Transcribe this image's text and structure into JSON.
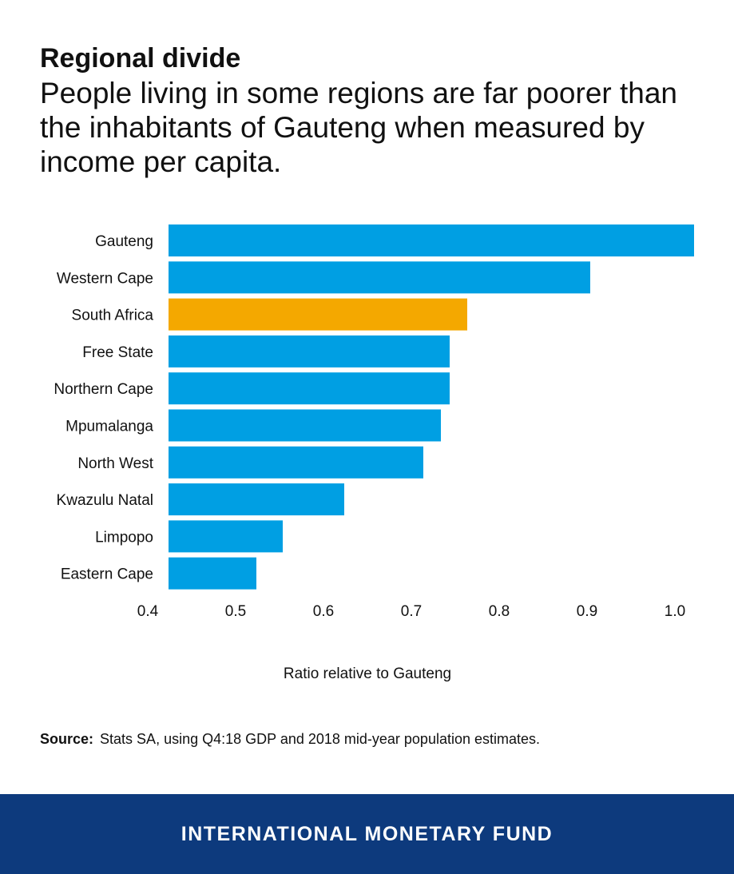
{
  "header": {
    "title": "Regional divide",
    "subtitle": "People living in some regions are far poorer than the inhabitants of Gauteng when measured by income per capita."
  },
  "chart_data": {
    "type": "bar",
    "orientation": "horizontal",
    "categories": [
      "Gauteng",
      "Western Cape",
      "South Africa",
      "Free State",
      "Northern Cape",
      "Mpumalanga",
      "North West",
      "Kwazulu Natal",
      "Limpopo",
      "Eastern Cape"
    ],
    "values": [
      1.0,
      0.88,
      0.74,
      0.72,
      0.72,
      0.71,
      0.69,
      0.6,
      0.53,
      0.5
    ],
    "highlight": "South Africa",
    "xlabel": "Ratio relative to Gauteng",
    "xlim": [
      0.4,
      1.0
    ],
    "xticks": [
      "0.4",
      "0.5",
      "0.6",
      "0.7",
      "0.8",
      "0.9",
      "1.0"
    ],
    "grid": false,
    "colors": {
      "bar": "#009fe3",
      "highlight": "#f4a800"
    }
  },
  "source": {
    "label": "Source:",
    "text": "Stats SA, using Q4:18 GDP and 2018 mid-year population estimates."
  },
  "footer": {
    "text": "INTERNATIONAL MONETARY FUND",
    "background": "#0d3a7d"
  }
}
